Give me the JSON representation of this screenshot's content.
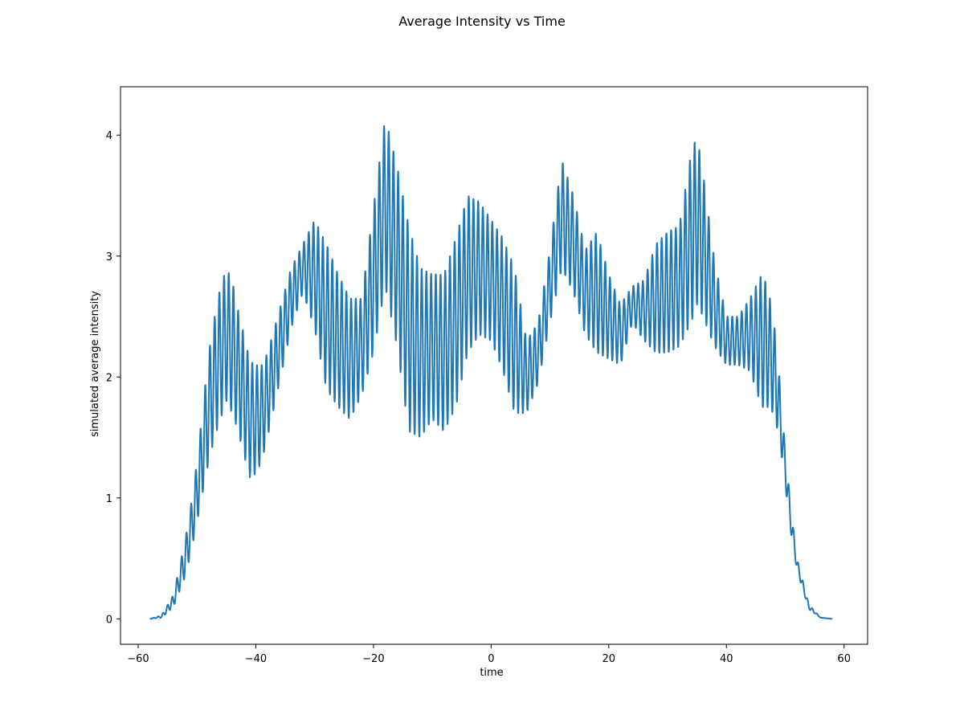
{
  "chart_data": {
    "type": "line",
    "title": "Average Intensity vs Time",
    "xlabel": "time",
    "ylabel": "simulated average intensity",
    "xlim": [
      -63.0,
      64.0
    ],
    "ylim": [
      -0.21,
      4.4
    ],
    "xticks": [
      -60,
      -40,
      -20,
      0,
      20,
      40,
      60
    ],
    "xtick_labels": [
      "−60",
      "−40",
      "−20",
      "0",
      "20",
      "40",
      "60"
    ],
    "yticks": [
      0,
      1,
      2,
      3,
      4
    ],
    "ytick_labels": [
      "0",
      "1",
      "2",
      "3",
      "4"
    ],
    "grid": false,
    "legend": "none",
    "series": [
      {
        "color": "#1f77b4",
        "oscillation_period": 0.8,
        "x_range": [
          -58,
          58
        ],
        "envelope": {
          "x": [
            -58,
            -56,
            -54,
            -52,
            -51,
            -50,
            -49,
            -48,
            -47,
            -46,
            -45,
            -44,
            -43,
            -42,
            -41,
            -40,
            -39,
            -38,
            -36,
            -34,
            -32,
            -30,
            -28,
            -26,
            -24,
            -22,
            -20,
            -18,
            -16,
            -14,
            -12,
            -10,
            -8,
            -6,
            -4,
            -2,
            0,
            2,
            4,
            6,
            8,
            10,
            12,
            14,
            16,
            18,
            20,
            22,
            24,
            26,
            28,
            30,
            32,
            34,
            35,
            36,
            38,
            40,
            42,
            44,
            46,
            47,
            48,
            49,
            50,
            51,
            52,
            54,
            56,
            58
          ],
          "mean": [
            0.0,
            0.02,
            0.15,
            0.5,
            0.75,
            1.05,
            1.4,
            1.75,
            2.0,
            2.2,
            2.35,
            2.25,
            2.05,
            1.85,
            1.65,
            1.65,
            1.7,
            1.85,
            2.25,
            2.65,
            2.9,
            2.85,
            2.5,
            2.3,
            2.15,
            2.25,
            2.8,
            3.45,
            3.0,
            2.4,
            2.2,
            2.25,
            2.2,
            2.45,
            2.85,
            2.9,
            2.8,
            2.6,
            2.3,
            2.0,
            2.2,
            2.75,
            3.35,
            3.1,
            2.7,
            2.7,
            2.5,
            2.35,
            2.6,
            2.55,
            2.65,
            2.7,
            2.75,
            3.15,
            3.3,
            3.1,
            2.6,
            2.3,
            2.3,
            2.35,
            2.3,
            2.25,
            2.1,
            1.75,
            1.25,
            0.8,
            0.45,
            0.1,
            0.01,
            0.0
          ],
          "amplitude": [
            0.0,
            0.01,
            0.05,
            0.15,
            0.2,
            0.25,
            0.35,
            0.45,
            0.5,
            0.55,
            0.55,
            0.55,
            0.5,
            0.5,
            0.48,
            0.45,
            0.4,
            0.35,
            0.3,
            0.25,
            0.2,
            0.45,
            0.6,
            0.55,
            0.5,
            0.4,
            0.6,
            0.7,
            0.75,
            0.85,
            0.7,
            0.6,
            0.65,
            0.7,
            0.65,
            0.55,
            0.5,
            0.55,
            0.6,
            0.3,
            0.25,
            0.3,
            0.45,
            0.4,
            0.35,
            0.5,
            0.35,
            0.25,
            0.15,
            0.25,
            0.45,
            0.5,
            0.5,
            0.7,
            0.7,
            0.6,
            0.35,
            0.2,
            0.2,
            0.3,
            0.55,
            0.5,
            0.4,
            0.25,
            0.15,
            0.1,
            0.05,
            0.02,
            0.0,
            0.0
          ]
        }
      }
    ]
  }
}
